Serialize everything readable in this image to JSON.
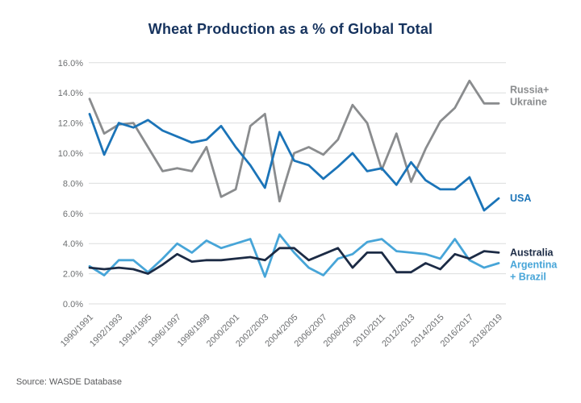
{
  "title": "Wheat Production as a % of Global Total",
  "source": "Source: WASDE Database",
  "style": {
    "title_color": "#16335e",
    "axis_text_color": "#6d6f71",
    "grid_color": "#dcddde",
    "background": "#ffffff"
  },
  "chart_data": {
    "type": "line",
    "title": "Wheat Production as a % of Global Total",
    "xlabel": "",
    "ylabel": "",
    "ylim": [
      0,
      16
    ],
    "y_step": 2,
    "grid": "horizontal-only",
    "legend_position": "right-of-line-ends",
    "y_tick_labels": [
      "0.0%",
      "2.0%",
      "4.0%",
      "6.0%",
      "8.0%",
      "10.0%",
      "12.0%",
      "14.0%",
      "16.0%"
    ],
    "x_tick_labels": [
      "1990/1991",
      "1992/1993",
      "1994/1995",
      "1996/1997",
      "1998/1999",
      "2000/2001",
      "2002/2003",
      "2004/2005",
      "2006/2007",
      "2008/2009",
      "2010/2011",
      "2012/2013",
      "2014/2015",
      "2016/2017",
      "2018/2019"
    ],
    "years_per_tick": 2,
    "n_points": 29,
    "series": [
      {
        "name": "Russia+Ukraine",
        "label_lines": [
          "Russia+",
          "Ukraine"
        ],
        "color": "#8a8c8e",
        "values": [
          13.6,
          11.3,
          11.9,
          12.0,
          10.4,
          8.8,
          9.0,
          8.8,
          10.4,
          7.1,
          7.6,
          11.8,
          12.6,
          6.8,
          10.0,
          10.4,
          9.9,
          10.9,
          13.2,
          12.0,
          8.9,
          11.3,
          8.1,
          10.3,
          12.1,
          13.0,
          14.8,
          13.3,
          13.3
        ]
      },
      {
        "name": "Argentina + Brazil",
        "label_lines": [
          "Argentina",
          "+ Brazil"
        ],
        "color": "#47a5d8",
        "values": [
          2.5,
          1.9,
          2.9,
          2.9,
          2.1,
          3.0,
          4.0,
          3.4,
          4.2,
          3.7,
          4.0,
          4.3,
          1.8,
          4.6,
          3.4,
          2.4,
          1.9,
          3.0,
          3.3,
          4.1,
          4.3,
          3.5,
          3.4,
          3.3,
          3.0,
          4.3,
          2.9,
          2.4,
          2.7
        ]
      },
      {
        "name": "Australia",
        "label_lines": [
          "Australia"
        ],
        "color": "#1c2b45",
        "values": [
          2.4,
          2.3,
          2.4,
          2.3,
          2.0,
          2.6,
          3.3,
          2.8,
          2.9,
          2.9,
          3.0,
          3.1,
          2.9,
          3.7,
          3.7,
          2.9,
          3.3,
          3.7,
          2.4,
          3.4,
          3.4,
          2.1,
          2.1,
          2.7,
          2.3,
          3.3,
          3.0,
          3.5,
          3.4
        ]
      },
      {
        "name": "USA",
        "label_lines": [
          "USA"
        ],
        "color": "#1b74b8",
        "values": [
          12.6,
          9.9,
          12.0,
          11.7,
          12.2,
          11.5,
          11.1,
          10.7,
          10.9,
          11.8,
          10.4,
          9.2,
          7.7,
          11.4,
          9.5,
          9.2,
          8.3,
          9.1,
          10.0,
          8.8,
          9.0,
          7.9,
          9.4,
          8.2,
          7.6,
          7.6,
          8.4,
          6.2,
          7.0
        ]
      }
    ]
  }
}
